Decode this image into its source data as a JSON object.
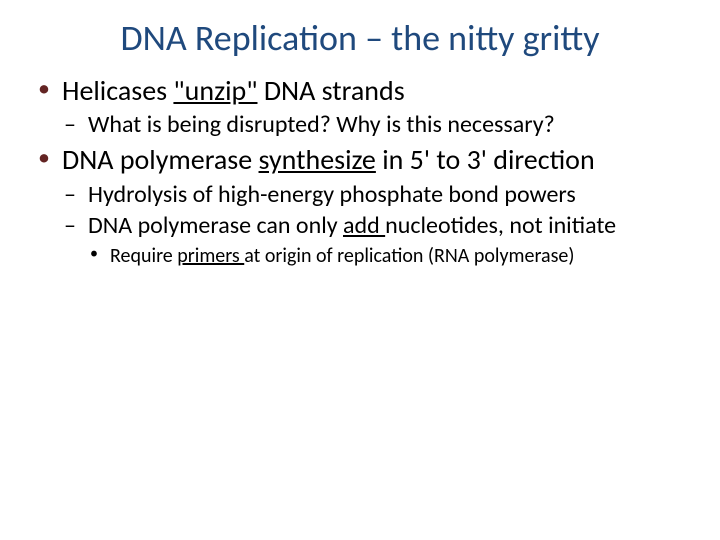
{
  "colors": {
    "title": "#1f497d",
    "bullet_l1": "#632423",
    "body_text": "#000000",
    "background": "#ffffff"
  },
  "typography": {
    "title_fontsize": 36,
    "l1_fontsize": 28,
    "l2_fontsize": 24,
    "l3_fontsize": 20,
    "font_family": "Calibri"
  },
  "title": "DNA Replication – the nitty gritty",
  "bullets": {
    "b1": {
      "pre": "Helicases ",
      "u": "\"unzip\"",
      "post": " DNA strands",
      "sub": {
        "s1": "What is being disrupted? Why is this necessary?"
      }
    },
    "b2": {
      "pre": "DNA polymerase ",
      "u": "synthesize",
      "post": " in 5' to 3' direction",
      "sub": {
        "s1": "Hydrolysis of high-energy phosphate bond powers",
        "s2_pre": "DNA polymerase can only ",
        "s2_u": "add ",
        "s2_post": "nucleotides, not initiate",
        "sub3": {
          "t1_pre": "Require ",
          "t1_u": "primers ",
          "t1_post": "at origin of replication (RNA polymerase)"
        }
      }
    }
  }
}
